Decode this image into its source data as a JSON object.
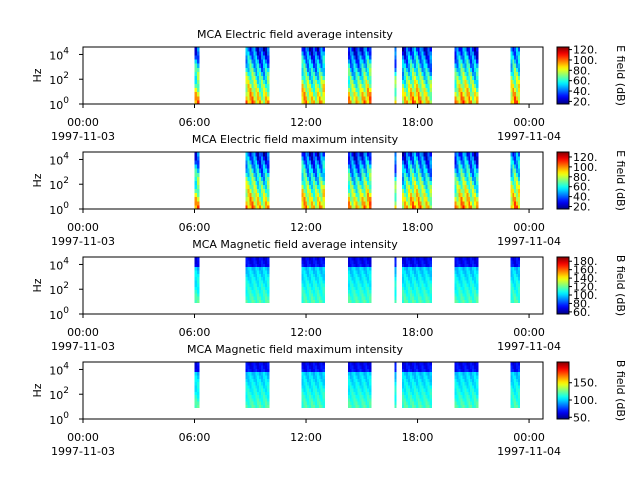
{
  "chart_data": [
    {
      "type": "heatmap",
      "title": "MCA  Electric field average intensity",
      "ylabel": "Hz",
      "y_scale": "log",
      "ylim": [
        1,
        40000
      ],
      "y_ticks": [
        {
          "base": "10",
          "exp": "0",
          "value": 1
        },
        {
          "base": "10",
          "exp": "2",
          "value": 100
        },
        {
          "base": "10",
          "exp": "4",
          "value": 10000
        }
      ],
      "xlim": [
        "1997-11-03 00:00",
        "1997-11-04 00:45"
      ],
      "x_ticks": [
        {
          "time": "00:00",
          "date": "1997-11-03"
        },
        {
          "time": "06:00",
          "date": ""
        },
        {
          "time": "12:00",
          "date": ""
        },
        {
          "time": "18:00",
          "date": ""
        },
        {
          "time": "00:00",
          "date": "1997-11-04"
        }
      ],
      "colorbar": {
        "label": "E field (dB)",
        "range": [
          15,
          125
        ],
        "ticks": [
          "120.",
          "100.",
          "80.",
          "60.",
          "40.",
          "20."
        ],
        "tick_values": [
          120,
          100,
          80,
          60,
          40,
          20
        ]
      },
      "field": "electric",
      "data_segments": [
        {
          "start": "1997-11-03 06:00",
          "end": "1997-11-03 06:15"
        },
        {
          "start": "1997-11-03 08:45",
          "end": "1997-11-03 10:00"
        },
        {
          "start": "1997-11-03 11:45",
          "end": "1997-11-03 13:00"
        },
        {
          "start": "1997-11-03 14:15",
          "end": "1997-11-03 15:30"
        },
        {
          "start": "1997-11-03 16:45",
          "end": "1997-11-03 16:50"
        },
        {
          "start": "1997-11-03 17:10",
          "end": "1997-11-03 18:45"
        },
        {
          "start": "1997-11-03 20:00",
          "end": "1997-11-03 21:15"
        },
        {
          "start": "1997-11-03 23:00",
          "end": "1997-11-03 23:30"
        }
      ]
    },
    {
      "type": "heatmap",
      "title": "MCA  Electric field maximum intensity",
      "ylabel": "Hz",
      "y_scale": "log",
      "ylim": [
        1,
        40000
      ],
      "y_ticks": [
        {
          "base": "10",
          "exp": "0",
          "value": 1
        },
        {
          "base": "10",
          "exp": "2",
          "value": 100
        },
        {
          "base": "10",
          "exp": "4",
          "value": 10000
        }
      ],
      "xlim": [
        "1997-11-03 00:00",
        "1997-11-04 00:45"
      ],
      "x_ticks": [
        {
          "time": "00:00",
          "date": "1997-11-03"
        },
        {
          "time": "06:00",
          "date": ""
        },
        {
          "time": "12:00",
          "date": ""
        },
        {
          "time": "18:00",
          "date": ""
        },
        {
          "time": "00:00",
          "date": "1997-11-04"
        }
      ],
      "colorbar": {
        "label": "E field (dB)",
        "range": [
          15,
          130
        ],
        "ticks": [
          "120.",
          "100.",
          "80.",
          "60.",
          "40.",
          "20."
        ],
        "tick_values": [
          120,
          100,
          80,
          60,
          40,
          20
        ]
      },
      "field": "electric",
      "data_segments": [
        {
          "start": "1997-11-03 06:00",
          "end": "1997-11-03 06:15"
        },
        {
          "start": "1997-11-03 08:45",
          "end": "1997-11-03 10:00"
        },
        {
          "start": "1997-11-03 11:45",
          "end": "1997-11-03 13:00"
        },
        {
          "start": "1997-11-03 14:15",
          "end": "1997-11-03 15:30"
        },
        {
          "start": "1997-11-03 16:45",
          "end": "1997-11-03 16:50"
        },
        {
          "start": "1997-11-03 17:10",
          "end": "1997-11-03 18:45"
        },
        {
          "start": "1997-11-03 20:00",
          "end": "1997-11-03 21:15"
        },
        {
          "start": "1997-11-03 23:00",
          "end": "1997-11-03 23:30"
        }
      ]
    },
    {
      "type": "heatmap",
      "title": "MCA  Magnetic field average intensity",
      "ylabel": "Hz",
      "y_scale": "log",
      "ylim": [
        1,
        40000
      ],
      "y_ticks": [
        {
          "base": "10",
          "exp": "0",
          "value": 1
        },
        {
          "base": "10",
          "exp": "2",
          "value": 100
        },
        {
          "base": "10",
          "exp": "4",
          "value": 10000
        }
      ],
      "xlim": [
        "1997-11-03 00:00",
        "1997-11-04 00:45"
      ],
      "x_ticks": [
        {
          "time": "00:00",
          "date": "1997-11-03"
        },
        {
          "time": "06:00",
          "date": ""
        },
        {
          "time": "12:00",
          "date": ""
        },
        {
          "time": "18:00",
          "date": ""
        },
        {
          "time": "00:00",
          "date": "1997-11-04"
        }
      ],
      "colorbar": {
        "label": "B field (dB)",
        "range": [
          55,
          190
        ],
        "ticks": [
          "180.",
          "160.",
          "140.",
          "120.",
          "100.",
          "80.",
          "60."
        ],
        "tick_values": [
          180,
          160,
          140,
          120,
          100,
          80,
          60
        ]
      },
      "field": "magnetic",
      "data_segments": [
        {
          "start": "1997-11-03 06:00",
          "end": "1997-11-03 06:15"
        },
        {
          "start": "1997-11-03 08:45",
          "end": "1997-11-03 10:00"
        },
        {
          "start": "1997-11-03 11:45",
          "end": "1997-11-03 13:00"
        },
        {
          "start": "1997-11-03 14:15",
          "end": "1997-11-03 15:30"
        },
        {
          "start": "1997-11-03 16:45",
          "end": "1997-11-03 16:50"
        },
        {
          "start": "1997-11-03 17:10",
          "end": "1997-11-03 18:45"
        },
        {
          "start": "1997-11-03 20:00",
          "end": "1997-11-03 21:15"
        },
        {
          "start": "1997-11-03 23:00",
          "end": "1997-11-03 23:30"
        }
      ]
    },
    {
      "type": "heatmap",
      "title": "MCA  Magnetic field maximum intensity",
      "ylabel": "Hz",
      "y_scale": "log",
      "ylim": [
        1,
        40000
      ],
      "y_ticks": [
        {
          "base": "10",
          "exp": "0",
          "value": 1
        },
        {
          "base": "10",
          "exp": "2",
          "value": 100
        },
        {
          "base": "10",
          "exp": "4",
          "value": 10000
        }
      ],
      "xlim": [
        "1997-11-03 00:00",
        "1997-11-04 00:45"
      ],
      "x_ticks": [
        {
          "time": "00:00",
          "date": "1997-11-03"
        },
        {
          "time": "06:00",
          "date": ""
        },
        {
          "time": "12:00",
          "date": ""
        },
        {
          "time": "18:00",
          "date": ""
        },
        {
          "time": "00:00",
          "date": "1997-11-04"
        }
      ],
      "colorbar": {
        "label": "B field (dB)",
        "range": [
          45,
          210
        ],
        "ticks": [
          "150.",
          "100.",
          "50."
        ],
        "tick_values": [
          150,
          100,
          50
        ]
      },
      "field": "magnetic",
      "data_segments": [
        {
          "start": "1997-11-03 06:00",
          "end": "1997-11-03 06:15"
        },
        {
          "start": "1997-11-03 08:45",
          "end": "1997-11-03 10:00"
        },
        {
          "start": "1997-11-03 11:45",
          "end": "1997-11-03 13:00"
        },
        {
          "start": "1997-11-03 14:15",
          "end": "1997-11-03 15:30"
        },
        {
          "start": "1997-11-03 16:45",
          "end": "1997-11-03 16:50"
        },
        {
          "start": "1997-11-03 17:10",
          "end": "1997-11-03 18:45"
        },
        {
          "start": "1997-11-03 20:00",
          "end": "1997-11-03 21:15"
        },
        {
          "start": "1997-11-03 23:00",
          "end": "1997-11-03 23:30"
        }
      ]
    }
  ]
}
